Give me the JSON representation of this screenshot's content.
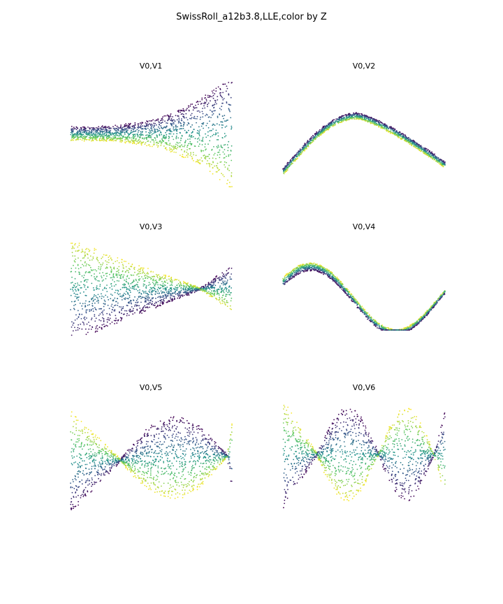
{
  "figure": {
    "title": "SwissRoll_a12b3.8,LLE,color by Z",
    "colormap": [
      "#440154",
      "#3b528b",
      "#21918c",
      "#5ec962",
      "#fde725"
    ]
  },
  "chart_data": [
    {
      "type": "scatter",
      "title": "V0,V1",
      "shape": "flare",
      "axes": "off",
      "color_by": "Z"
    },
    {
      "type": "scatter",
      "title": "V0,V2",
      "shape": "arch",
      "axes": "off",
      "color_by": "Z"
    },
    {
      "type": "scatter",
      "title": "V0,V3",
      "shape": "funnel",
      "axes": "off",
      "color_by": "Z"
    },
    {
      "type": "scatter",
      "title": "V0,V4",
      "shape": "wave",
      "axes": "off",
      "color_by": "Z"
    },
    {
      "type": "scatter",
      "title": "V0,V5",
      "shape": "twist2",
      "axes": "off",
      "color_by": "Z"
    },
    {
      "type": "scatter",
      "title": "V0,V6",
      "shape": "twist3",
      "axes": "off",
      "color_by": "Z"
    }
  ]
}
